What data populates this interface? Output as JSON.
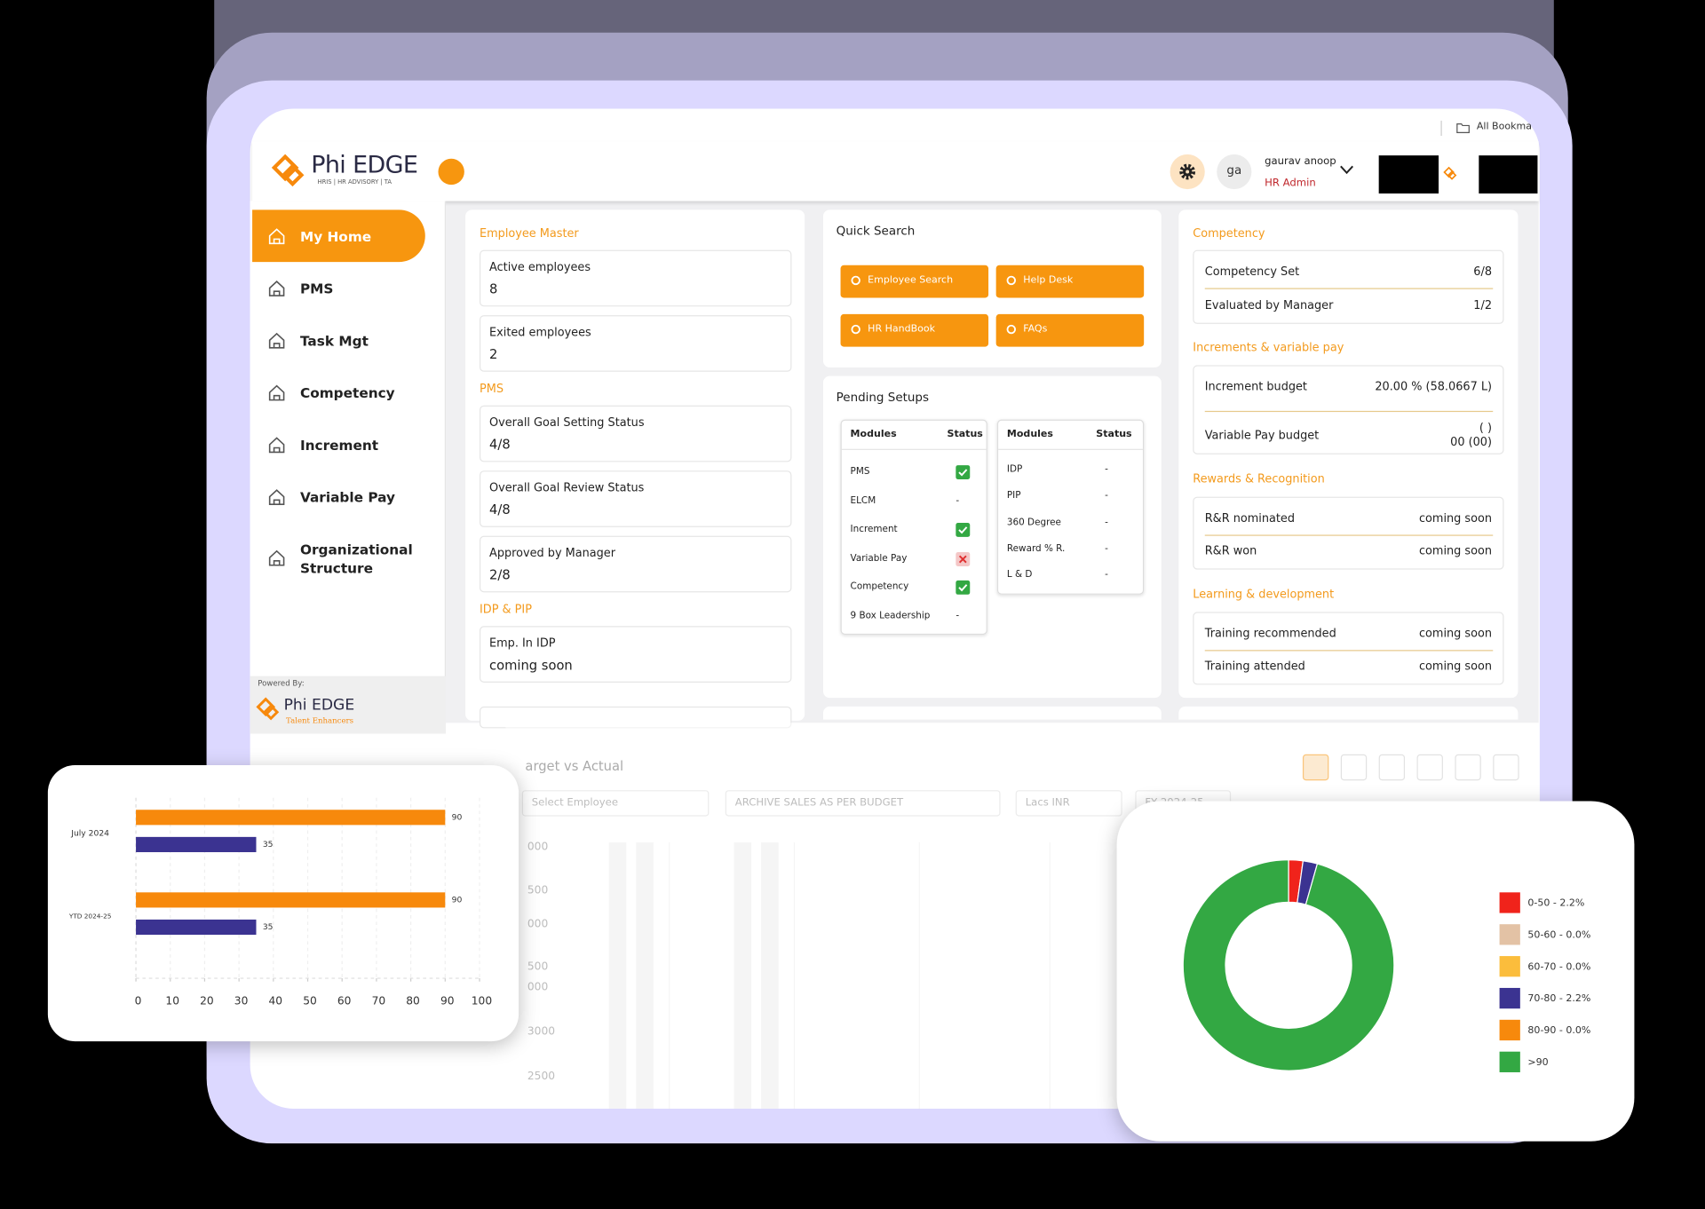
{
  "browser": {
    "bookmarks": "All Bookma"
  },
  "header": {
    "logo_name": "Phi EDGE",
    "logo_tagline": "HRIS | HR ADVISORY | TA",
    "avatar": "ga",
    "user_name": "gaurav anoop",
    "user_role": "HR Admin"
  },
  "sidebar": {
    "items": [
      "My Home",
      "PMS",
      "Task Mgt",
      "Competency",
      "Increment",
      "Variable Pay",
      "Organizational Structure"
    ],
    "powered_by": "Powered By:",
    "footer_logo": "Phi EDGE",
    "footer_tagline": "Talent Enhancers"
  },
  "summary": {
    "sections": [
      {
        "title": "Employee Master",
        "cards": [
          {
            "label": "Active employees",
            "value": "8"
          },
          {
            "label": "Exited employees",
            "value": "2"
          }
        ]
      },
      {
        "title": "PMS",
        "cards": [
          {
            "label": "Overall Goal Setting Status",
            "value": "4/8"
          },
          {
            "label": "Overall Goal Review Status",
            "value": "4/8"
          },
          {
            "label": "Approved by Manager",
            "value": "2/8"
          }
        ]
      },
      {
        "title": "IDP & PIP",
        "cards": [
          {
            "label": "Emp. In IDP",
            "value": "coming soon"
          }
        ]
      }
    ]
  },
  "quick_search": {
    "title": "Quick Search",
    "buttons": [
      "Employee Search",
      "Help Desk",
      "HR HandBook",
      "FAQs"
    ]
  },
  "pending_setups": {
    "title": "Pending Setups",
    "tables": [
      {
        "headers": [
          "Modules",
          "Status"
        ],
        "rows": [
          {
            "module": "PMS",
            "status": true
          },
          {
            "module": "ELCM",
            "status": "-"
          },
          {
            "module": "Increment",
            "status": true
          },
          {
            "module": "Variable Pay",
            "status": false
          },
          {
            "module": "Competency",
            "status": true
          },
          {
            "module": "9 Box Leadership",
            "status": "-"
          }
        ]
      },
      {
        "headers": [
          "Modules",
          "Status"
        ],
        "rows": [
          {
            "module": "IDP",
            "status": "-"
          },
          {
            "module": "PIP",
            "status": "-"
          },
          {
            "module": "360 Degree",
            "status": "-"
          },
          {
            "module": "Reward % R.",
            "status": "-"
          },
          {
            "module": "L & D",
            "status": "-"
          }
        ]
      }
    ]
  },
  "overview": {
    "sections": [
      {
        "title": "Competency",
        "rows": [
          {
            "label": "Competency Set",
            "value": "6/8"
          },
          {
            "label": "Evaluated by Manager",
            "value": "1/2"
          }
        ]
      },
      {
        "title": "Increments & variable pay",
        "rows": [
          {
            "label": "Increment budget",
            "value": "20.00 % (58.0667 L)"
          },
          {
            "label": "Variable Pay budget",
            "value": [
              "( )",
              "00 (00)"
            ]
          }
        ]
      },
      {
        "title": "Rewards & Recognition",
        "rows": [
          {
            "label": "R&R nominated",
            "value": "coming soon"
          },
          {
            "label": "R&R won",
            "value": "coming soon"
          }
        ]
      },
      {
        "title": "Learning & development",
        "rows": [
          {
            "label": "Training recommended",
            "value": "coming soon"
          },
          {
            "label": "Training attended",
            "value": "coming soon"
          }
        ]
      }
    ]
  },
  "target_chart": {
    "title": "arget vs Actual",
    "filters": [
      "Select Employee",
      "ARCHIVE SALES AS PER BUDGET",
      "Lacs INR",
      "FY 2024-25"
    ],
    "y_labels": [
      "000",
      "500",
      "000",
      "500",
      "000",
      "3000",
      "2500"
    ]
  },
  "chart_data": [
    {
      "type": "bar",
      "orientation": "horizontal",
      "categories": [
        "July 2024",
        "YTD 2024-25"
      ],
      "series": [
        {
          "color": "#f7890c",
          "values": [
            90,
            90
          ]
        },
        {
          "color": "#3b3391",
          "values": [
            35,
            35
          ]
        }
      ],
      "xlim": [
        0,
        100
      ],
      "xticks": [
        0,
        10,
        20,
        30,
        40,
        50,
        60,
        70,
        80,
        90,
        100
      ],
      "grid": true
    },
    {
      "type": "pie",
      "hole": true,
      "categories": [
        "0-50 - 2.2%",
        "50-60 - 0.0%",
        "60-70 - 0.0%",
        "70-80 - 2.2%",
        "80-90 - 0.0%",
        ">90"
      ],
      "values": [
        2.2,
        0.0,
        0.0,
        2.2,
        0.0,
        95.6
      ],
      "colors": [
        "#f0231b",
        "#e3c2a5",
        "#fbbd3c",
        "#3b3391",
        "#f7890c",
        "#33a843"
      ],
      "legend": "right"
    }
  ]
}
